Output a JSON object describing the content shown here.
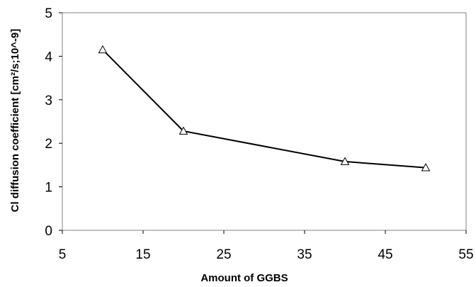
{
  "chart_data": {
    "type": "line",
    "title": "",
    "xlabel": "Amount of GGBS",
    "ylabel": "Cl diffusion coefficient [cm²/s;10^-9]",
    "xlim": [
      5,
      55
    ],
    "ylim": [
      0,
      5
    ],
    "xticks": [
      5,
      15,
      25,
      35,
      45,
      55
    ],
    "yticks": [
      0,
      1,
      2,
      3,
      4,
      5
    ],
    "grid": false,
    "legend": "none",
    "series": [
      {
        "x": [
          10,
          20,
          40,
          50
        ],
        "y": [
          4.15,
          2.28,
          1.58,
          1.44
        ],
        "marker": "triangle-open",
        "color": "#000000"
      }
    ]
  }
}
